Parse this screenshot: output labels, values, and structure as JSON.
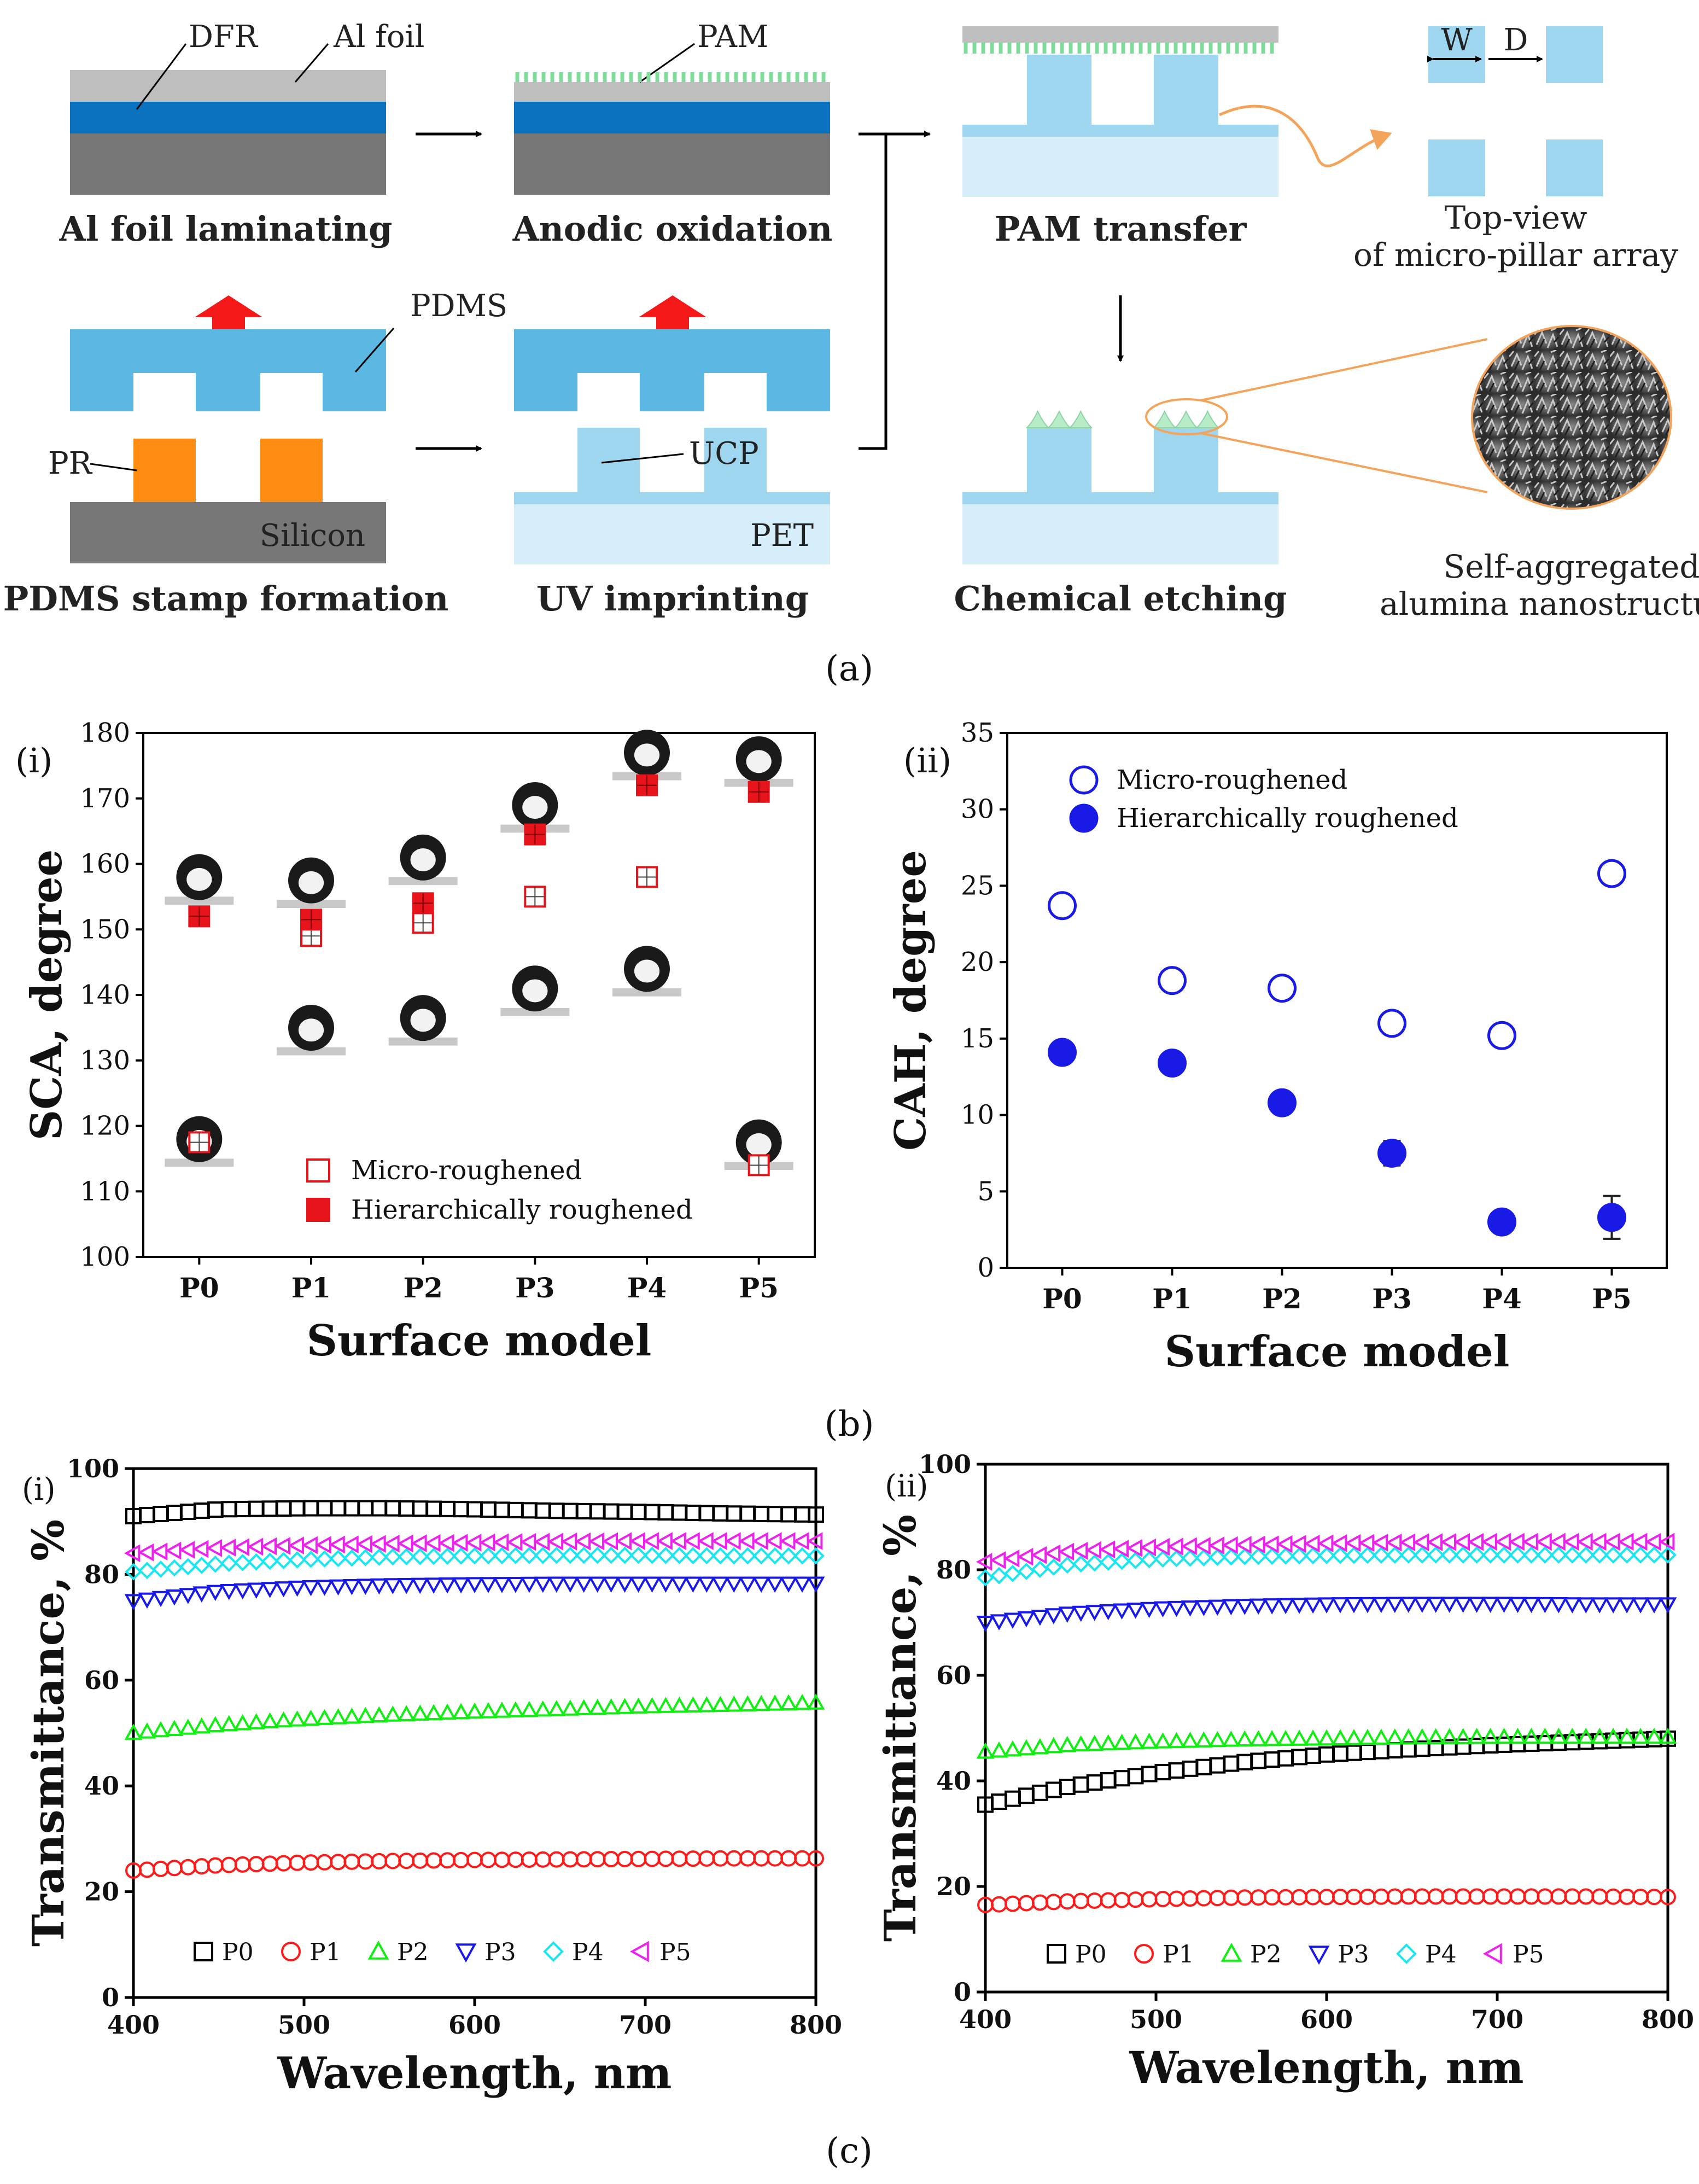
{
  "panel_a": {
    "label_DFR": "DFR",
    "label_Al_foil": "Al foil",
    "label_PAM": "PAM",
    "label_PDMS": "PDMS",
    "label_PR": "PR",
    "label_Silicon": "Silicon",
    "label_UCP": "UCP",
    "label_PET": "PET",
    "label_W": "W",
    "label_D": "D",
    "step_al_foil": "Al foil laminating",
    "step_anodic": "Anodic oxidation",
    "step_pam_transfer": "PAM transfer",
    "step_pdms_stamp": "PDMS stamp formation",
    "step_uv": "UV imprinting",
    "step_etching": "Chemical etching",
    "topview_line1": "Top-view",
    "topview_line2": "of micro-pillar array",
    "sem_line1": "Self-aggregated",
    "sem_line2": "alumina nanostructures",
    "caption": "(a)"
  },
  "panel_b": {
    "caption": "(b)"
  },
  "panel_c": {
    "caption": "(c)"
  },
  "chart_data": [
    {
      "id": "b-i",
      "type": "scatter",
      "panel_label": "(i)",
      "xlabel": "Surface model",
      "ylabel": "SCA, degree",
      "categories": [
        "P0",
        "P1",
        "P2",
        "P3",
        "P4",
        "P5"
      ],
      "ylim": [
        100,
        180
      ],
      "yticks": [
        "100",
        "110",
        "120",
        "130",
        "140",
        "150",
        "160",
        "170",
        "180"
      ],
      "legend_position": "bottom-right",
      "series": [
        {
          "name": "Micro-roughened",
          "marker": "open-square",
          "color": "#e8141b",
          "values": [
            117.5,
            149,
            151,
            155,
            158,
            114
          ]
        },
        {
          "name": "Hierarchically roughened",
          "marker": "filled-square",
          "color": "#e8141b",
          "values": [
            152,
            151.5,
            154,
            164.5,
            172,
            171
          ]
        }
      ]
    },
    {
      "id": "b-ii",
      "type": "scatter",
      "panel_label": "(ii)",
      "xlabel": "Surface model",
      "ylabel": "CAH, degree",
      "categories": [
        "P0",
        "P1",
        "P2",
        "P3",
        "P4",
        "P5"
      ],
      "ylim": [
        0,
        35
      ],
      "yticks": [
        "0",
        "5",
        "10",
        "15",
        "20",
        "25",
        "30",
        "35"
      ],
      "legend_position": "top-left",
      "series": [
        {
          "name": "Micro-roughened",
          "marker": "open-circle",
          "color": "#1a1ae6",
          "values": [
            23.7,
            18.8,
            18.3,
            16,
            15.2,
            25.8
          ],
          "errors": [
            0.6,
            0.5,
            0.5,
            0.6,
            0.7,
            0.5
          ]
        },
        {
          "name": "Hierarchically roughened",
          "marker": "filled-circle",
          "color": "#1a1ae6",
          "values": [
            14.1,
            13.4,
            10.8,
            7.5,
            3,
            3.3
          ],
          "errors": [
            0.4,
            0.5,
            0.6,
            0.8,
            0.5,
            1.4
          ]
        }
      ]
    },
    {
      "id": "c-i",
      "type": "scatter",
      "panel_label": "(i)",
      "xlabel": "Wavelength, nm",
      "ylabel": "Transmittance, %",
      "xlim": [
        400,
        800
      ],
      "ylim": [
        0,
        100
      ],
      "xticks": [
        "400",
        "500",
        "600",
        "700",
        "800"
      ],
      "yticks": [
        "0",
        "20",
        "40",
        "60",
        "80",
        "100"
      ],
      "legend_position": "bottom",
      "series": [
        {
          "name": "P0",
          "marker": "square",
          "color": "#000000",
          "x": [
            400,
            450,
            500,
            550,
            600,
            650,
            700,
            750,
            800
          ],
          "y": [
            91,
            92.3,
            92.5,
            92.5,
            92.3,
            92,
            91.8,
            91.5,
            91.3
          ]
        },
        {
          "name": "P1",
          "marker": "circle",
          "color": "#ff1a1a",
          "x": [
            400,
            450,
            500,
            550,
            600,
            650,
            700,
            750,
            800
          ],
          "y": [
            24,
            25,
            25.5,
            25.8,
            26,
            26.1,
            26.2,
            26.3,
            26.3
          ]
        },
        {
          "name": "P2",
          "marker": "triangle-up",
          "color": "#11ee11",
          "x": [
            400,
            450,
            500,
            550,
            600,
            650,
            700,
            750,
            800
          ],
          "y": [
            50,
            51.5,
            52.6,
            53.4,
            54,
            54.5,
            55,
            55.3,
            55.7
          ]
        },
        {
          "name": "P3",
          "marker": "triangle-down",
          "color": "#1818e8",
          "x": [
            400,
            450,
            500,
            550,
            600,
            650,
            700,
            750,
            800
          ],
          "y": [
            75,
            76.8,
            77.6,
            78,
            78.2,
            78.3,
            78.3,
            78.3,
            78.3
          ]
        },
        {
          "name": "P4",
          "marker": "diamond",
          "color": "#18e6f0",
          "x": [
            400,
            450,
            500,
            550,
            600,
            650,
            700,
            750,
            800
          ],
          "y": [
            80.5,
            82,
            82.8,
            83.3,
            83.5,
            83.6,
            83.6,
            83.5,
            83.5
          ]
        },
        {
          "name": "P5",
          "marker": "triangle-left",
          "color": "#ee22ee",
          "x": [
            400,
            450,
            500,
            550,
            600,
            650,
            700,
            750,
            800
          ],
          "y": [
            84,
            85,
            85.5,
            85.8,
            86,
            86.2,
            86.3,
            86.3,
            86.3
          ]
        }
      ]
    },
    {
      "id": "c-ii",
      "type": "scatter",
      "panel_label": "(ii)",
      "xlabel": "Wavelength, nm",
      "ylabel": "Transmittance, %",
      "xlim": [
        400,
        800
      ],
      "ylim": [
        0,
        100
      ],
      "xticks": [
        "400",
        "500",
        "600",
        "700",
        "800"
      ],
      "yticks": [
        "0",
        "20",
        "40",
        "60",
        "80",
        "100"
      ],
      "legend_position": "bottom",
      "series": [
        {
          "name": "P0",
          "marker": "square",
          "color": "#000000",
          "x": [
            400,
            450,
            500,
            550,
            600,
            650,
            700,
            750,
            800
          ],
          "y": [
            35.5,
            39,
            41.5,
            43.5,
            45,
            46,
            46.8,
            47.4,
            48
          ]
        },
        {
          "name": "P1",
          "marker": "circle",
          "color": "#ff1a1a",
          "x": [
            400,
            450,
            500,
            550,
            600,
            650,
            700,
            750,
            800
          ],
          "y": [
            16.5,
            17.2,
            17.6,
            17.9,
            18,
            18.1,
            18.1,
            18.1,
            18
          ]
        },
        {
          "name": "P2",
          "marker": "triangle-up",
          "color": "#11ee11",
          "x": [
            400,
            450,
            500,
            550,
            600,
            650,
            700,
            750,
            800
          ],
          "y": [
            45.5,
            46.8,
            47.4,
            47.8,
            48,
            48.2,
            48.3,
            48.3,
            48.3
          ]
        },
        {
          "name": "P3",
          "marker": "triangle-down",
          "color": "#1818e8",
          "x": [
            400,
            450,
            500,
            550,
            600,
            650,
            700,
            750,
            800
          ],
          "y": [
            70,
            71.8,
            72.7,
            73.2,
            73.5,
            73.6,
            73.6,
            73.5,
            73.5
          ]
        },
        {
          "name": "P4",
          "marker": "diamond",
          "color": "#18e6f0",
          "x": [
            400,
            450,
            500,
            550,
            600,
            650,
            700,
            750,
            800
          ],
          "y": [
            78.5,
            81,
            82,
            82.5,
            82.7,
            82.8,
            82.8,
            82.8,
            82.8
          ]
        },
        {
          "name": "P5",
          "marker": "triangle-left",
          "color": "#ee22ee",
          "x": [
            400,
            450,
            500,
            550,
            600,
            650,
            700,
            750,
            800
          ],
          "y": [
            81.5,
            83.5,
            84.3,
            84.7,
            85,
            85.2,
            85.3,
            85.3,
            85.3
          ]
        }
      ]
    }
  ]
}
